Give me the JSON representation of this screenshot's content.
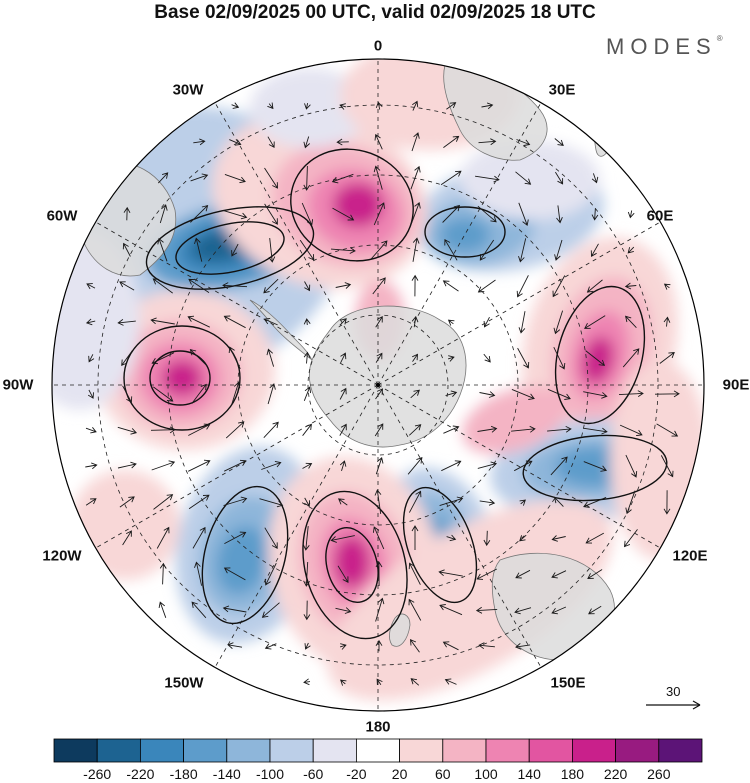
{
  "title": "Base 02/09/2025 00 UTC, valid 02/09/2025 18 UTC",
  "brand": "MODES",
  "brand_mark": "®",
  "longitude_labels": [
    {
      "key": "n",
      "text": "0"
    },
    {
      "key": "ne",
      "text": "30E"
    },
    {
      "key": "ene",
      "text": "60E"
    },
    {
      "key": "e",
      "text": "90E"
    },
    {
      "key": "ese",
      "text": "120E"
    },
    {
      "key": "se",
      "text": "150E"
    },
    {
      "key": "s",
      "text": "180"
    },
    {
      "key": "sw",
      "text": "150W"
    },
    {
      "key": "wsw",
      "text": "120W"
    },
    {
      "key": "w",
      "text": "90W"
    },
    {
      "key": "wnw",
      "text": "60W"
    },
    {
      "key": "nw",
      "text": "30W"
    }
  ],
  "reference_vector": {
    "label": "30"
  },
  "colorbar": {
    "ticks": [
      "-260",
      "-220",
      "-180",
      "-140",
      "-100",
      "-60",
      "-20",
      "20",
      "60",
      "100",
      "140",
      "180",
      "220",
      "260"
    ],
    "colors": [
      "#0d3a5e",
      "#1d6391",
      "#3a86bb",
      "#5d9ccb",
      "#8eb6da",
      "#bccfe8",
      "#e4e4f1",
      "#ffffff",
      "#f8d7d7",
      "#f4b4c4",
      "#ee84b2",
      "#e255a1",
      "#c9208b",
      "#981b80",
      "#5c1477"
    ]
  },
  "colors": {
    "land_fill": "#dcdcdc",
    "vector_stroke": "#1a1a1a"
  }
}
